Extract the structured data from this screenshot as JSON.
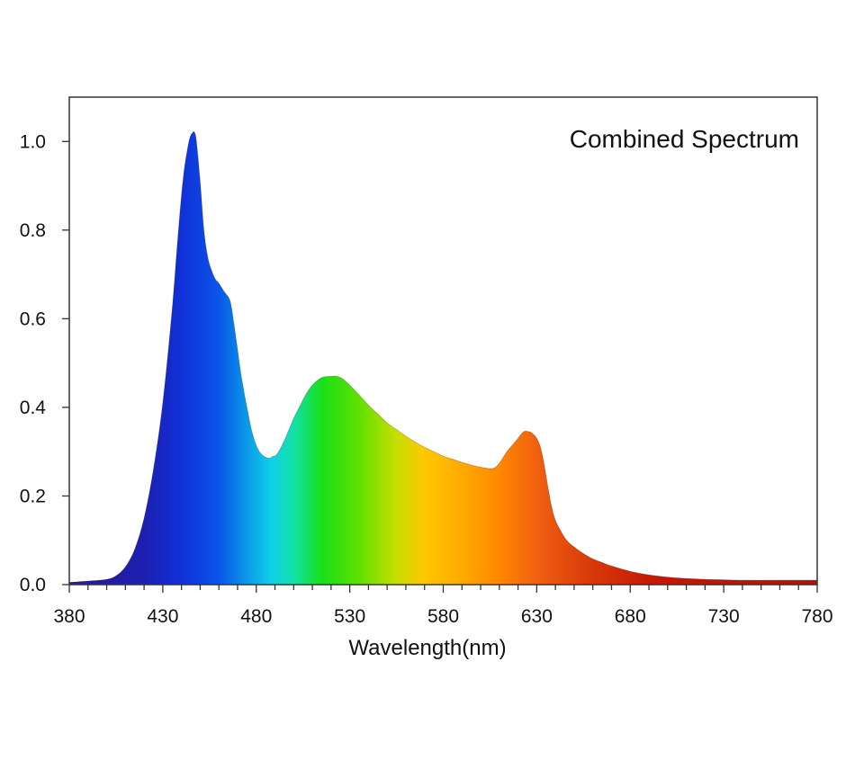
{
  "chart_data": {
    "type": "area",
    "title": "Combined Spectrum",
    "xlabel": "Wavelength(nm)",
    "ylabel": "",
    "xlim": [
      380,
      780
    ],
    "ylim": [
      0,
      1.1
    ],
    "xticks": [
      380,
      430,
      480,
      530,
      580,
      630,
      680,
      730,
      780
    ],
    "xtick_labels": [
      "380",
      "430",
      "480",
      "530",
      "580",
      "630",
      "680",
      "730",
      "780"
    ],
    "xminor_step": 10,
    "yticks": [
      0,
      0.2,
      0.4,
      0.6,
      0.8,
      1.0
    ],
    "ytick_labels": [
      "0.0",
      "0.2",
      "0.4",
      "0.6",
      "0.8",
      "1.0"
    ],
    "grid": false,
    "legend": "none",
    "fill": "visible-spectrum gradient",
    "series": [
      {
        "x": [
          380,
          390,
          400,
          405,
          410,
          415,
          420,
          425,
          430,
          435,
          438,
          441,
          444,
          446,
          447,
          448,
          450,
          452,
          454,
          456,
          458,
          460,
          463,
          466,
          468,
          470,
          472,
          475,
          478,
          481,
          484,
          487,
          489,
          490,
          492,
          495,
          498,
          500,
          503,
          506,
          510,
          515,
          520,
          523,
          526,
          530,
          535,
          540,
          545,
          550,
          555,
          560,
          565,
          570,
          575,
          580,
          585,
          590,
          595,
          600,
          605,
          608,
          611,
          614,
          617,
          620,
          623,
          626,
          628,
          630,
          632,
          634,
          636,
          638,
          640,
          643,
          646,
          650,
          655,
          660,
          665,
          670,
          680,
          690,
          700,
          710,
          720,
          730,
          740,
          760,
          780
        ],
        "y": [
          0.005,
          0.008,
          0.012,
          0.02,
          0.04,
          0.08,
          0.15,
          0.26,
          0.41,
          0.62,
          0.78,
          0.92,
          1.0,
          1.02,
          1.02,
          1.0,
          0.91,
          0.8,
          0.74,
          0.71,
          0.69,
          0.68,
          0.66,
          0.64,
          0.59,
          0.53,
          0.47,
          0.4,
          0.34,
          0.305,
          0.29,
          0.285,
          0.29,
          0.29,
          0.3,
          0.325,
          0.355,
          0.375,
          0.4,
          0.425,
          0.45,
          0.467,
          0.47,
          0.47,
          0.465,
          0.45,
          0.428,
          0.405,
          0.385,
          0.365,
          0.35,
          0.335,
          0.322,
          0.31,
          0.3,
          0.29,
          0.283,
          0.276,
          0.27,
          0.265,
          0.262,
          0.265,
          0.28,
          0.3,
          0.315,
          0.33,
          0.345,
          0.345,
          0.34,
          0.33,
          0.31,
          0.27,
          0.22,
          0.175,
          0.145,
          0.12,
          0.1,
          0.085,
          0.07,
          0.058,
          0.05,
          0.042,
          0.03,
          0.022,
          0.017,
          0.014,
          0.012,
          0.011,
          0.01,
          0.01,
          0.01
        ]
      }
    ]
  }
}
